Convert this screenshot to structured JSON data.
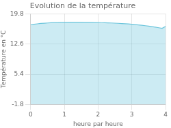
{
  "chart_data": {
    "type": "area",
    "title": "Evolution de la température",
    "x_label": "heure par heure",
    "y_label": "Température en °C",
    "x": [
      0.0,
      0.1,
      0.2,
      0.3,
      0.4,
      0.5,
      0.6,
      0.7,
      0.8,
      0.9,
      1.0,
      1.1,
      1.2,
      1.3,
      1.4,
      1.5,
      1.6,
      1.7,
      1.8,
      1.9,
      2.0,
      2.1,
      2.2,
      2.3,
      2.4,
      2.5,
      2.6,
      2.7,
      2.8,
      2.9,
      3.0,
      3.1,
      3.2,
      3.3,
      3.4,
      3.5,
      3.6,
      3.7,
      3.8,
      3.9,
      4.0
    ],
    "values": [
      17.2,
      17.3,
      17.4,
      17.5,
      17.55,
      17.6,
      17.65,
      17.7,
      17.72,
      17.74,
      17.75,
      17.76,
      17.77,
      17.78,
      17.78,
      17.77,
      17.76,
      17.75,
      17.73,
      17.71,
      17.7,
      17.68,
      17.66,
      17.63,
      17.6,
      17.56,
      17.52,
      17.47,
      17.42,
      17.37,
      17.3,
      17.22,
      17.14,
      17.05,
      16.95,
      16.84,
      16.72,
      16.6,
      16.47,
      16.33,
      16.8
    ],
    "color": "#6cc5dc",
    "xlim": [
      0,
      4
    ],
    "xticks": [
      0,
      1,
      2,
      3,
      4
    ],
    "ylim": [
      -1.8,
      19.8
    ],
    "yticks": [
      -1.8,
      5.4,
      12.6,
      19.8
    ],
    "grid": true
  }
}
